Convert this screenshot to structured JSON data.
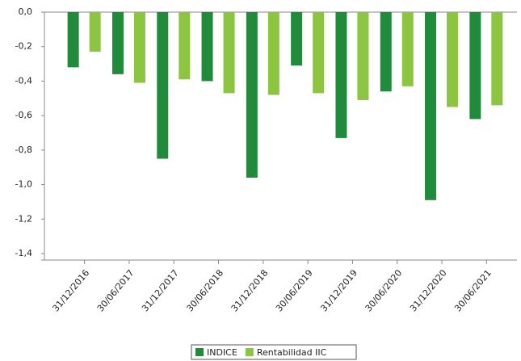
{
  "chart_data": {
    "type": "bar",
    "categories": [
      "31/12/2016",
      "30/06/2017",
      "31/12/2017",
      "30/06/2018",
      "31/12/2018",
      "30/06/2019",
      "31/12/2019",
      "30/06/2020",
      "31/12/2020",
      "30/06/2021"
    ],
    "series": [
      {
        "name": "INDICE",
        "color": "#1f8b3b",
        "values": [
          -0.32,
          -0.36,
          -0.85,
          -0.4,
          -0.96,
          -0.31,
          -0.73,
          -0.46,
          -1.09,
          -0.62
        ]
      },
      {
        "name": "Rentabilidad IIC",
        "color": "#8cc540",
        "values": [
          -0.23,
          -0.41,
          -0.39,
          -0.47,
          -0.48,
          -0.47,
          -0.51,
          -0.43,
          -0.55,
          -0.54
        ]
      }
    ],
    "ylim": [
      -1.4,
      0
    ],
    "yticks": [
      {
        "value": 0,
        "label": "0,0"
      },
      {
        "value": -0.2,
        "label": "-0,2"
      },
      {
        "value": -0.4,
        "label": "-0,4"
      },
      {
        "value": -0.6,
        "label": "-0,6"
      },
      {
        "value": -0.8,
        "label": "-0,8"
      },
      {
        "value": -1.0,
        "label": "-1,0"
      },
      {
        "value": -1.2,
        "label": "-1,2"
      },
      {
        "value": -1.4,
        "label": "-1,4"
      }
    ],
    "legend": "bottom"
  }
}
